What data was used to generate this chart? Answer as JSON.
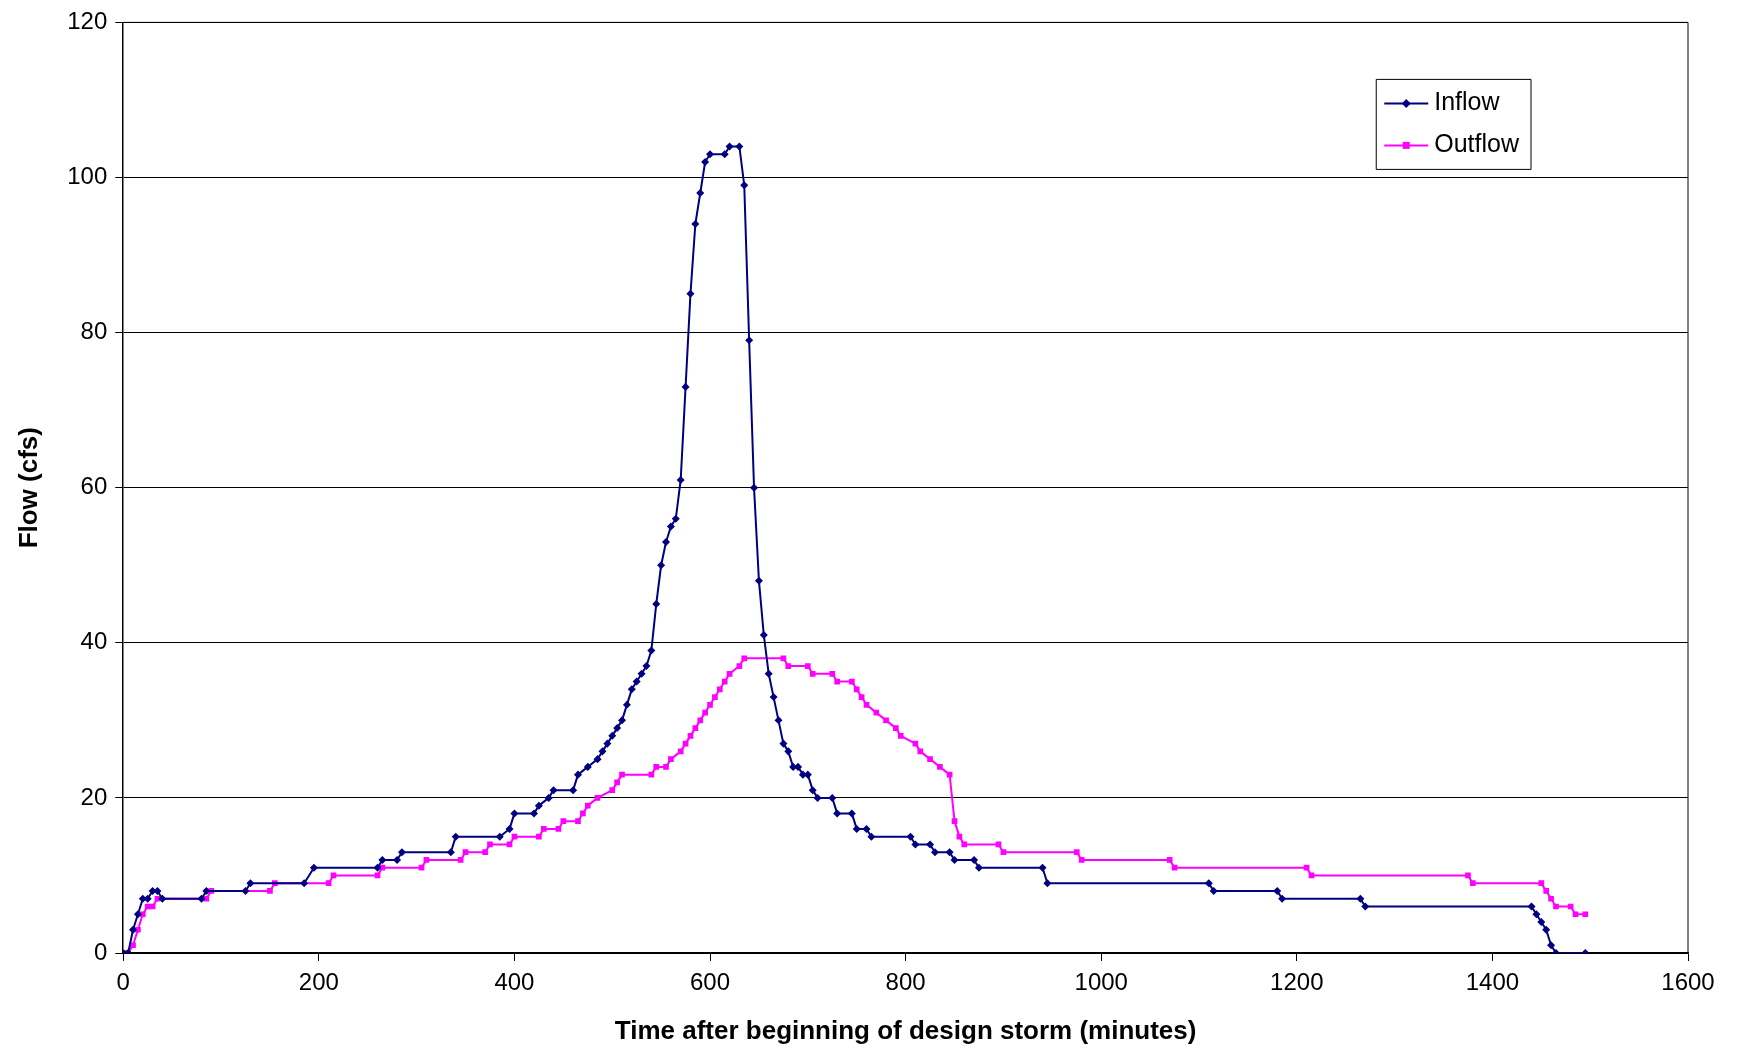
{
  "chart_data": {
    "type": "line",
    "xlabel": "Time after beginning of design storm (minutes)",
    "ylabel": "Flow (cfs)",
    "xlim": [
      0,
      1600
    ],
    "xticks": [
      0,
      200,
      400,
      600,
      800,
      1000,
      1200,
      1400,
      1600
    ],
    "ylim": [
      0,
      120
    ],
    "yticks": [
      0,
      20,
      40,
      60,
      80,
      100,
      120
    ],
    "grid": "y",
    "legend": "top right",
    "series": [
      {
        "name": "Inflow",
        "color": "#000080",
        "marker": "diamond",
        "x": [
          0,
          5,
          10,
          15,
          20,
          25,
          30,
          35,
          40,
          80,
          85,
          125,
          130,
          185,
          195,
          260,
          265,
          280,
          285,
          335,
          340,
          385,
          395,
          400,
          420,
          425,
          435,
          440,
          460,
          465,
          475,
          485,
          490,
          495,
          500,
          505,
          510,
          515,
          520,
          525,
          530,
          535,
          540,
          545,
          550,
          555,
          560,
          565,
          570,
          575,
          580,
          585,
          590,
          595,
          600,
          615,
          620,
          630,
          635,
          640,
          645,
          650,
          655,
          660,
          665,
          670,
          675,
          680,
          685,
          690,
          695,
          700,
          705,
          710,
          725,
          730,
          745,
          750,
          760,
          765,
          805,
          810,
          825,
          830,
          845,
          850,
          870,
          875,
          940,
          945,
          1110,
          1115,
          1180,
          1185,
          1265,
          1270,
          1440,
          1445,
          1450,
          1455,
          1460,
          1465,
          1495
        ],
        "values": [
          0,
          0,
          3,
          5,
          7,
          7,
          8,
          8,
          7,
          7,
          8,
          8,
          9,
          9,
          11,
          11,
          12,
          12,
          13,
          13,
          15,
          15,
          16,
          18,
          18,
          19,
          20,
          21,
          21,
          23,
          24,
          25,
          26,
          27,
          28,
          29,
          30,
          32,
          34,
          35,
          36,
          37,
          39,
          45,
          50,
          53,
          55,
          56,
          61,
          73,
          85,
          94,
          98,
          102,
          103,
          103,
          104,
          104,
          99,
          79,
          60,
          48,
          41,
          36,
          33,
          30,
          27,
          26,
          24,
          24,
          23,
          23,
          21,
          20,
          20,
          18,
          18,
          16,
          16,
          15,
          15,
          14,
          14,
          13,
          13,
          12,
          12,
          11,
          11,
          9,
          9,
          8,
          8,
          7,
          7,
          6,
          6,
          5,
          4,
          3,
          1,
          0,
          0
        ]
      },
      {
        "name": "Outflow",
        "color": "#ff00ff",
        "marker": "square",
        "x": [
          0,
          5,
          10,
          15,
          20,
          25,
          30,
          35,
          85,
          90,
          150,
          155,
          210,
          215,
          260,
          265,
          305,
          310,
          345,
          350,
          370,
          375,
          395,
          400,
          425,
          430,
          445,
          450,
          465,
          470,
          475,
          485,
          500,
          505,
          510,
          540,
          545,
          555,
          560,
          570,
          575,
          580,
          585,
          590,
          595,
          600,
          605,
          610,
          615,
          620,
          630,
          635,
          675,
          680,
          700,
          705,
          725,
          730,
          745,
          750,
          755,
          760,
          770,
          780,
          790,
          795,
          810,
          815,
          825,
          835,
          845,
          850,
          855,
          860,
          895,
          900,
          975,
          980,
          1070,
          1075,
          1210,
          1215,
          1375,
          1380,
          1450,
          1455,
          1460,
          1465,
          1480,
          1485,
          1495
        ],
        "values": [
          0,
          0,
          1,
          3,
          5,
          6,
          6,
          7,
          7,
          8,
          8,
          9,
          9,
          10,
          10,
          11,
          11,
          12,
          12,
          13,
          13,
          14,
          14,
          15,
          15,
          16,
          16,
          17,
          17,
          18,
          19,
          20,
          21,
          22,
          23,
          23,
          24,
          24,
          25,
          26,
          27,
          28,
          29,
          30,
          31,
          32,
          33,
          34,
          35,
          36,
          37,
          38,
          38,
          37,
          37,
          36,
          36,
          35,
          35,
          34,
          33,
          32,
          31,
          30,
          29,
          28,
          27,
          26,
          25,
          24,
          23,
          17,
          15,
          14,
          14,
          13,
          13,
          12,
          12,
          11,
          11,
          10,
          10,
          9,
          9,
          8,
          7,
          6,
          6,
          5,
          5
        ]
      }
    ]
  }
}
